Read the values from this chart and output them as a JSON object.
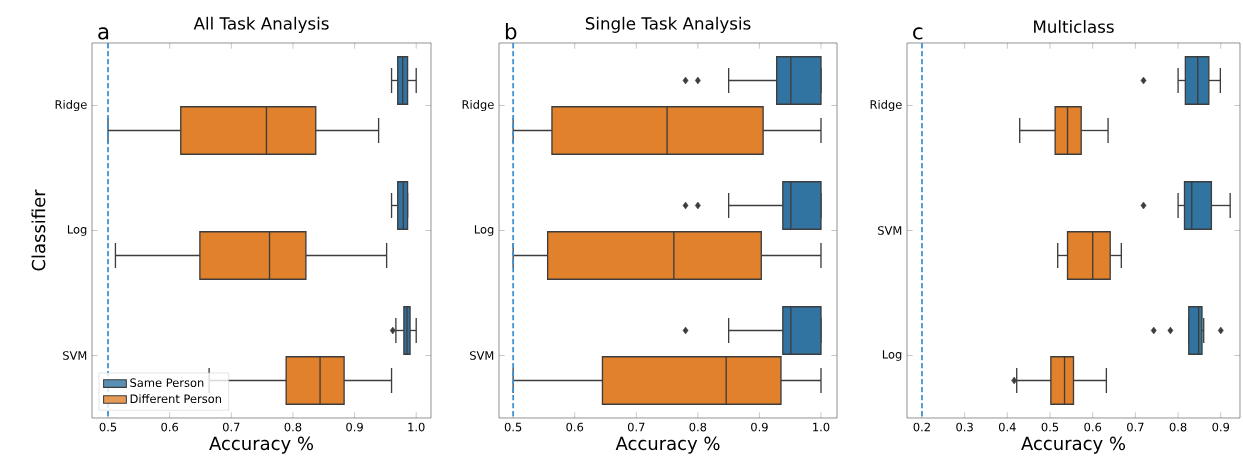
{
  "chart_data": [
    {
      "type": "box",
      "orientation": "horizontal",
      "title": "All Task Analysis",
      "annotations": [
        "a"
      ],
      "xlabel": "Accuracy %",
      "ylabel": "Classifier",
      "categories": [
        "Ridge",
        "Log",
        "SVM"
      ],
      "xlim": [
        0.474,
        1.024
      ],
      "xticks": [
        0.5,
        0.6,
        0.7,
        0.8,
        0.9,
        {
          "value": 1.0,
          "label": "1.0"
        }
      ],
      "legend": "bottom left",
      "series": [
        {
          "name": "Same Person",
          "color": "#3274a1",
          "boxes": [
            {
              "low": 0.96,
              "q1": 0.97,
              "median": 0.978,
              "q3": 0.986,
              "high": 1.0
            },
            {
              "low": 0.96,
              "q1": 0.97,
              "median": 0.979,
              "q3": 0.986,
              "high": 0.986
            },
            {
              "low": 0.967,
              "q1": 0.98,
              "median": 0.985,
              "q3": 0.99,
              "high": 1.0,
              "outliers": [
                0.962
              ]
            }
          ]
        },
        {
          "name": "Different Person",
          "color": "#e1812c",
          "boxes": [
            {
              "low": 0.5,
              "q1": 0.618,
              "median": 0.757,
              "q3": 0.837,
              "high": 0.939
            },
            {
              "low": 0.512,
              "q1": 0.649,
              "median": 0.762,
              "q3": 0.821,
              "high": 0.952
            },
            {
              "low": 0.664,
              "q1": 0.789,
              "median": 0.844,
              "q3": 0.883,
              "high": 0.96
            }
          ]
        }
      ],
      "ref_lines": [
        {
          "axis": "x",
          "value": 0.5,
          "color": "#3a8fd4",
          "line_style": "dashed"
        }
      ]
    },
    {
      "type": "box",
      "orientation": "horizontal",
      "title": "Single Task Analysis",
      "annotations": [
        "b"
      ],
      "xlabel": "Accuracy %",
      "categories": [
        "Ridge",
        "Log",
        "SVM"
      ],
      "xlim": [
        0.477,
        1.026
      ],
      "xticks": [
        0.5,
        0.6,
        0.7,
        0.8,
        0.9,
        {
          "value": 1.0,
          "label": "1.0"
        }
      ],
      "series": [
        {
          "color": "#3274a1",
          "boxes": [
            {
              "low": 0.85,
              "q1": 0.928,
              "median": 0.951,
              "q3": 1.0,
              "high": 1.0,
              "outliers": [
                0.78,
                0.8
              ]
            },
            {
              "low": 0.85,
              "q1": 0.938,
              "median": 0.951,
              "q3": 1.0,
              "high": 1.0,
              "outliers": [
                0.78,
                0.8
              ]
            },
            {
              "low": 0.85,
              "q1": 0.938,
              "median": 0.951,
              "q3": 1.0,
              "high": 1.0,
              "outliers": [
                0.78
              ]
            }
          ]
        },
        {
          "color": "#e1812c",
          "boxes": [
            {
              "low": 0.5,
              "q1": 0.563,
              "median": 0.75,
              "q3": 0.906,
              "high": 1.0
            },
            {
              "low": 0.5,
              "q1": 0.556,
              "median": 0.761,
              "q3": 0.903,
              "high": 1.0
            },
            {
              "low": 0.5,
              "q1": 0.645,
              "median": 0.846,
              "q3": 0.935,
              "high": 1.0
            }
          ]
        }
      ],
      "ref_lines": [
        {
          "axis": "x",
          "value": 0.5,
          "color": "#3a8fd4",
          "line_style": "dashed"
        }
      ]
    },
    {
      "type": "box",
      "orientation": "horizontal",
      "title": "Multiclass",
      "annotations": [
        "c"
      ],
      "xlabel": "Accuracy %",
      "categories": [
        "Ridge",
        "SVM",
        "Log"
      ],
      "xlim": [
        0.165,
        0.945
      ],
      "xticks": [
        0.2,
        0.3,
        0.4,
        0.5,
        0.6,
        0.7,
        0.8,
        0.9
      ],
      "series": [
        {
          "color": "#3274a1",
          "boxes": [
            {
              "low": 0.8,
              "q1": 0.817,
              "median": 0.846,
              "q3": 0.872,
              "high": 0.899,
              "outliers": [
                0.719
              ]
            },
            {
              "low": 0.8,
              "q1": 0.815,
              "median": 0.832,
              "q3": 0.878,
              "high": 0.922,
              "outliers": [
                0.719
              ]
            },
            {
              "low": 0.825,
              "q1": 0.825,
              "median": 0.848,
              "q3": 0.856,
              "high": 0.86,
              "outliers": [
                0.743,
                0.782,
                0.9
              ]
            }
          ]
        },
        {
          "color": "#e1812c",
          "boxes": [
            {
              "low": 0.429,
              "q1": 0.512,
              "median": 0.541,
              "q3": 0.573,
              "high": 0.636
            },
            {
              "low": 0.518,
              "q1": 0.541,
              "median": 0.6,
              "q3": 0.641,
              "high": 0.667
            },
            {
              "low": 0.422,
              "q1": 0.502,
              "median": 0.534,
              "q3": 0.555,
              "high": 0.632,
              "outliers": [
                0.416
              ]
            }
          ]
        }
      ],
      "ref_lines": [
        {
          "axis": "x",
          "value": 0.2,
          "color": "#3a8fd4",
          "line_style": "dashed"
        }
      ]
    }
  ]
}
